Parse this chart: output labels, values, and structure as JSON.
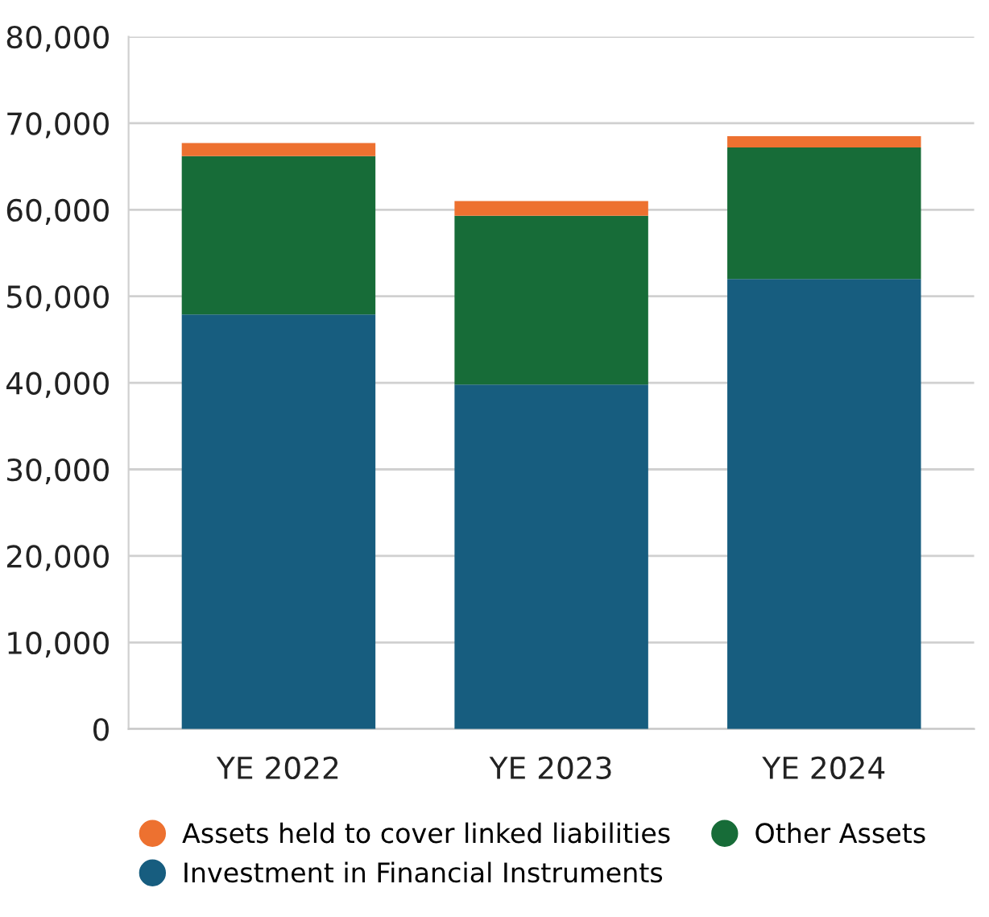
{
  "chart_data": {
    "type": "bar",
    "stacked": true,
    "categories": [
      "YE 2022",
      "YE 2023",
      "YE 2024"
    ],
    "series": [
      {
        "name": "Investment in Financial Instruments",
        "color": "#175d7f",
        "values": [
          47900,
          39800,
          52000
        ]
      },
      {
        "name": "Other Assets",
        "color": "#176c38",
        "values": [
          18300,
          19500,
          15200
        ]
      },
      {
        "name": "Assets held to cover linked liabilities",
        "color": "#ed7130",
        "values": [
          1500,
          1700,
          1300
        ]
      }
    ],
    "ylim": [
      0,
      80000
    ],
    "yticks": [
      {
        "value": 0,
        "label": "0"
      },
      {
        "value": 10000,
        "label": "10,000"
      },
      {
        "value": 20000,
        "label": "20,000"
      },
      {
        "value": 30000,
        "label": "30,000"
      },
      {
        "value": 40000,
        "label": "40,000"
      },
      {
        "value": 50000,
        "label": "50,000"
      },
      {
        "value": 60000,
        "label": "60,000"
      },
      {
        "value": 70000,
        "label": "70,000"
      },
      {
        "value": 80000,
        "label": "80,000"
      }
    ],
    "grid": "y",
    "legend": "bottom",
    "marker": "circle"
  }
}
